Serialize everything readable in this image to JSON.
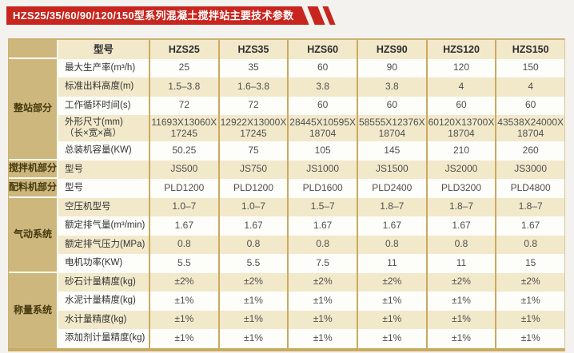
{
  "banner": {
    "title": "HZS25/35/60/90/120/150型系列混凝土搅拌站主要技术参数",
    "color": "#c8251e"
  },
  "table": {
    "header": {
      "label": "型号",
      "models": [
        "HZS25",
        "HZS35",
        "HZS60",
        "HZS90",
        "HZS120",
        "HZS150"
      ]
    },
    "groups": [
      {
        "name": "整站部分",
        "rows": [
          {
            "label": "最大生产率(m³/h)",
            "values": [
              "25",
              "35",
              "60",
              "90",
              "120",
              "150"
            ]
          },
          {
            "label": "标准出料高度(m)",
            "values": [
              "1.5–3.8",
              "1.6–3.8",
              "3.8",
              "3.8",
              "4",
              "4"
            ]
          },
          {
            "label": "工作循环时间(s)",
            "values": [
              "72",
              "72",
              "60",
              "60",
              "60",
              "60"
            ]
          },
          {
            "label": "外形尺寸(mm)\n（长×宽×高）",
            "tall": true,
            "values": [
              "11693X13060X\n17245",
              "12922X13000X\n17245",
              "28445X10595X\n18704",
              "58555X12376X\n18704",
              "60120X13700X\n18704",
              "43538X24000X\n18704"
            ]
          },
          {
            "label": "总装机容量(KW)",
            "values": [
              "50.25",
              "75",
              "105",
              "145",
              "210",
              "260"
            ]
          }
        ]
      },
      {
        "name": "搅拌机部分",
        "rows": [
          {
            "label": "型号",
            "values": [
              "JS500",
              "JS750",
              "JS1000",
              "JS1500",
              "JS2000",
              "JS3000"
            ]
          }
        ]
      },
      {
        "name": "配料机部分",
        "rows": [
          {
            "label": "型号",
            "values": [
              "PLD1200",
              "PLD1200",
              "PLD1600",
              "PLD2400",
              "PLD3200",
              "PLD4800"
            ]
          }
        ]
      },
      {
        "name": "气动系统",
        "rows": [
          {
            "label": "空压机型号",
            "values": [
              "1.0–7",
              "1.0–7",
              "1.5–7",
              "1.8–7",
              "1.8–7",
              "1.8–7"
            ]
          },
          {
            "label": "额定排气量(m³/min)",
            "values": [
              "1.67",
              "1.67",
              "1.67",
              "1.67",
              "1.67",
              "1.67"
            ]
          },
          {
            "label": "额定排气压力(MPa)",
            "values": [
              "0.8",
              "0.8",
              "0.8",
              "0.8",
              "0.8",
              "0.8"
            ]
          },
          {
            "label": "电机功率(KW)",
            "values": [
              "5.5",
              "5.5",
              "7.5",
              "11",
              "11",
              "15"
            ]
          }
        ]
      },
      {
        "name": "称量系统",
        "rows": [
          {
            "label": "砂石计量精度(kg)",
            "values": [
              "±2%",
              "±2%",
              "±2%",
              "±2%",
              "±2%",
              "±2%"
            ]
          },
          {
            "label": "水泥计量精度(kg)",
            "values": [
              "±1%",
              "±1%",
              "±1%",
              "±1%",
              "±1%",
              "±1%"
            ]
          },
          {
            "label": "水计量精度(kg)",
            "values": [
              "±1%",
              "±1%",
              "±1%",
              "±1%",
              "±1%",
              "±1%"
            ]
          },
          {
            "label": "添加剂计量精度(kg)",
            "values": [
              "±1%",
              "±1%",
              "±1%",
              "±1%",
              "±1%",
              "±1%"
            ]
          }
        ]
      }
    ],
    "colors": {
      "banner_red": "#c8251e",
      "group_column": "#cdb77c",
      "row_cream": "#f2e9cb",
      "row_white": "#fdfdfa",
      "border_tan": "#c9aa60"
    }
  }
}
